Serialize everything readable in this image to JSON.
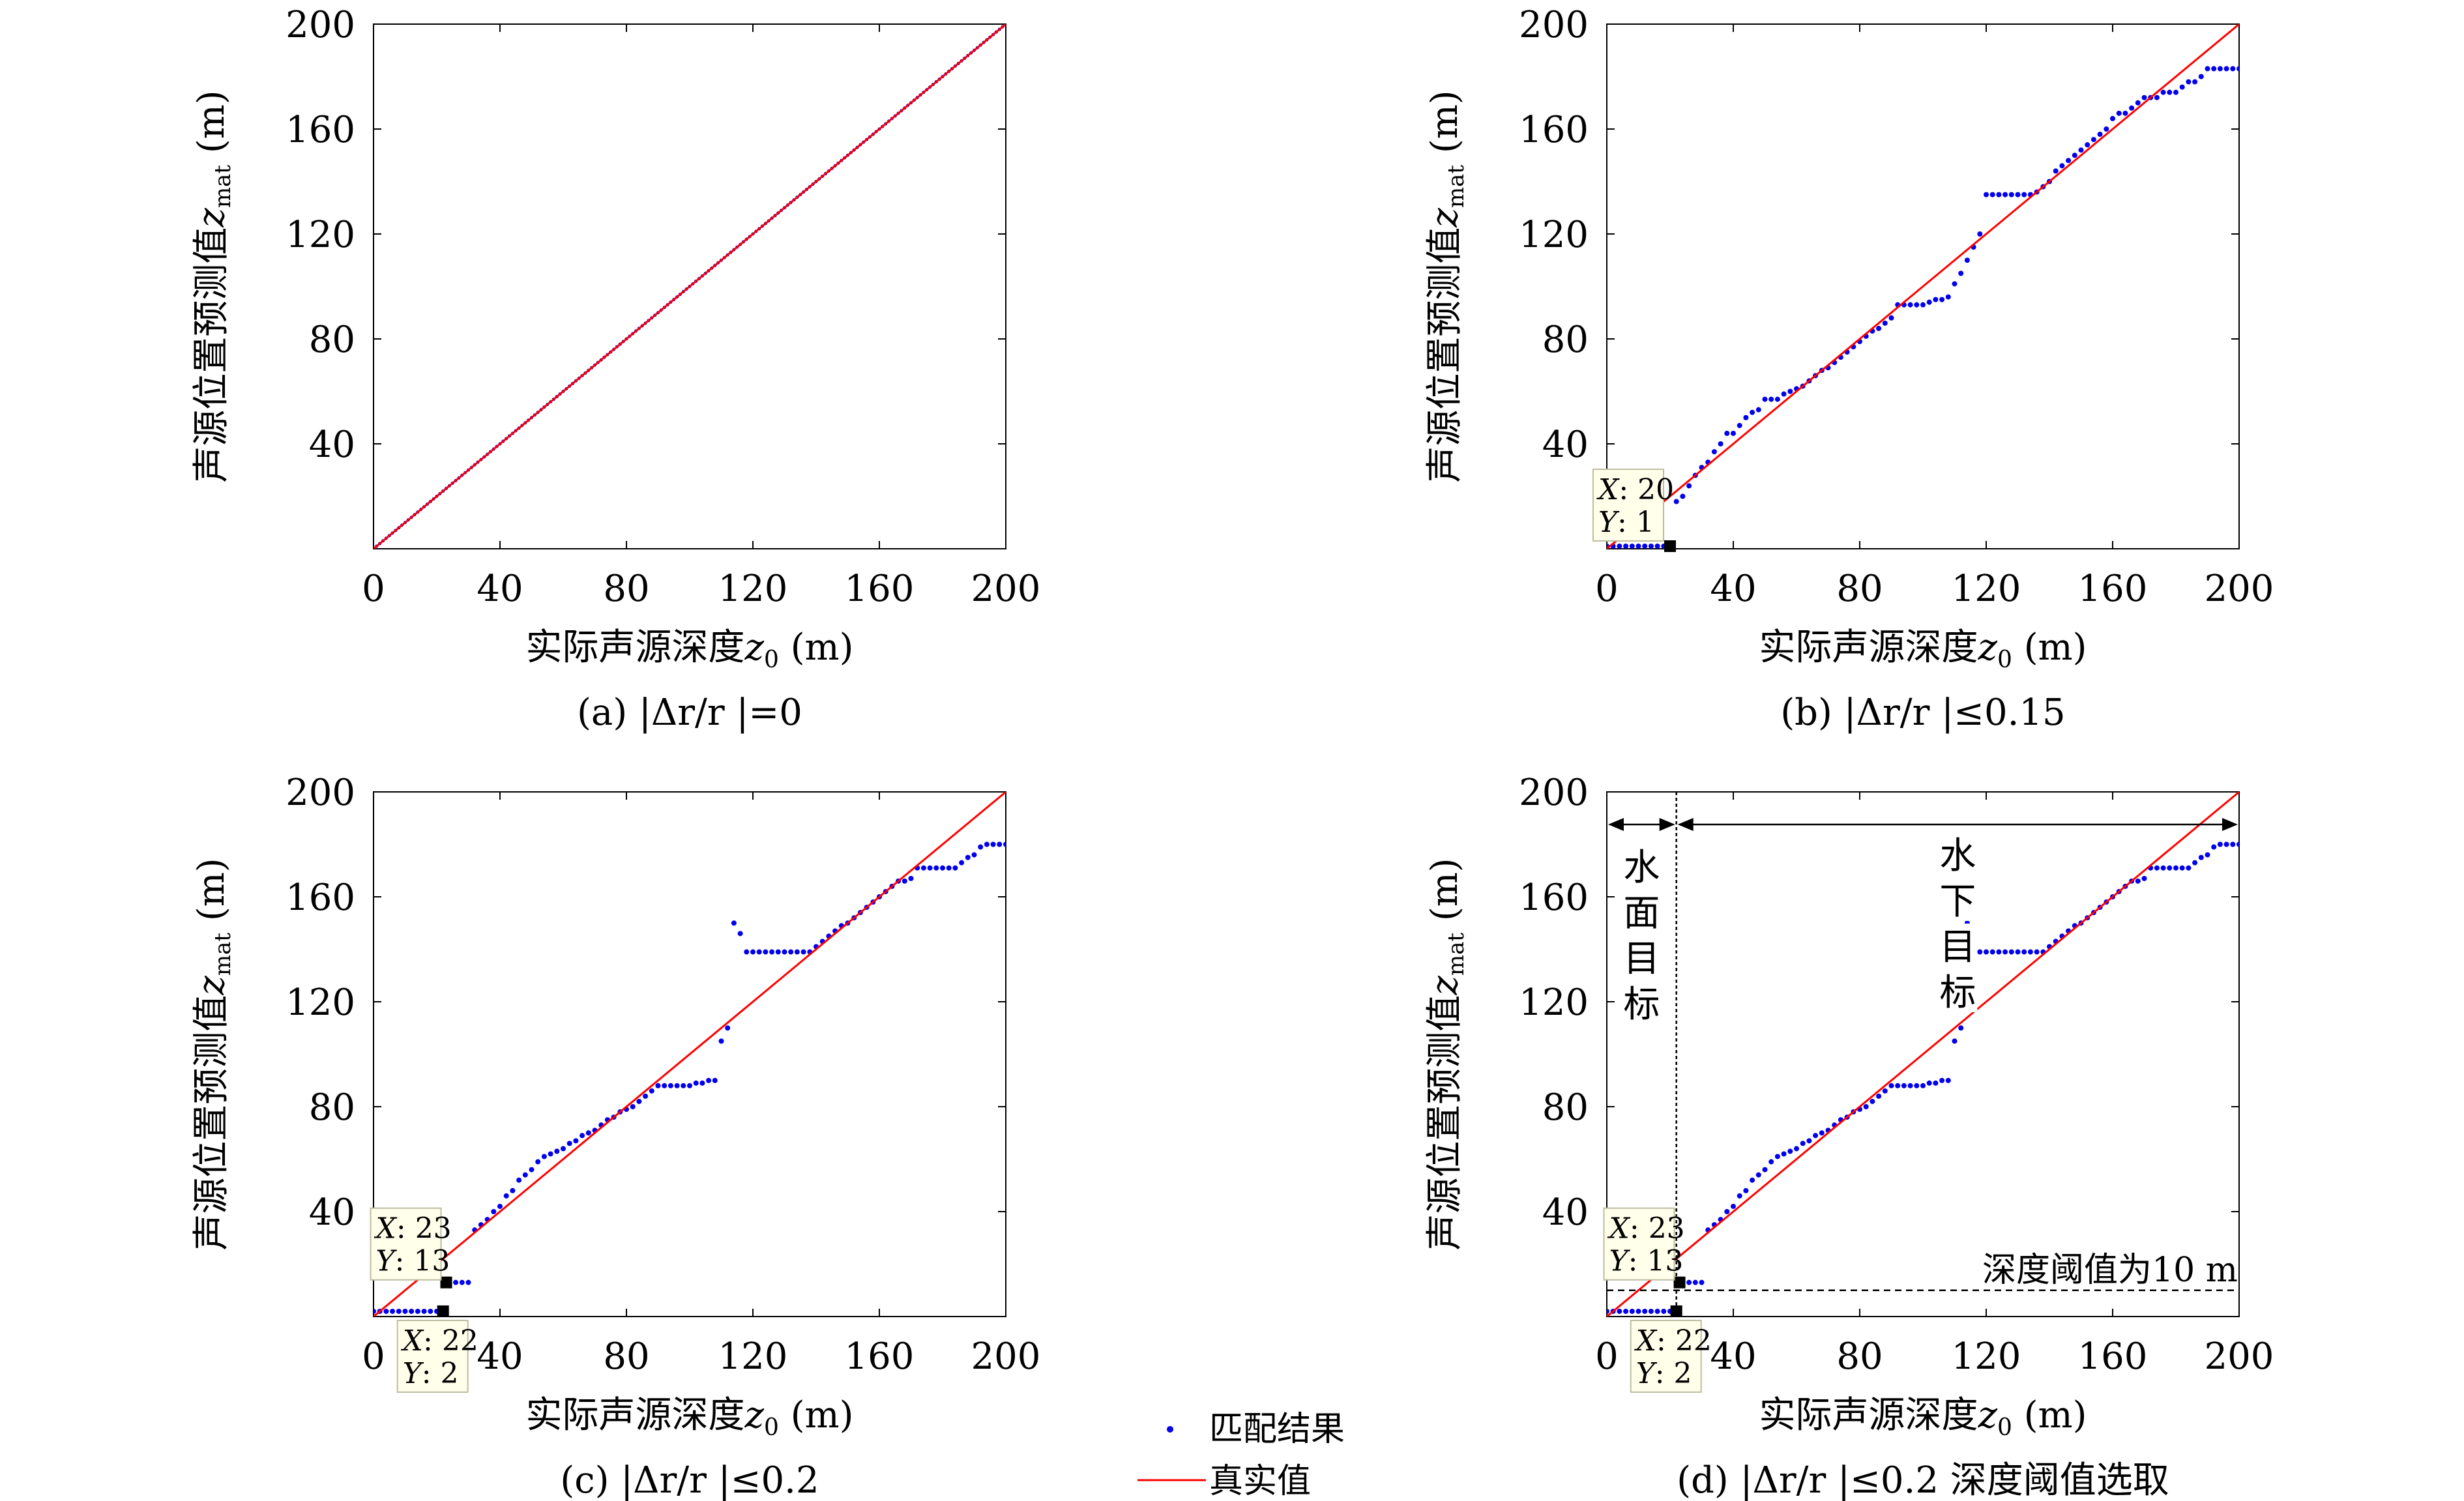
{
  "colors": {
    "match": "#0000ee",
    "truth": "#ff0000",
    "axis": "#000000",
    "tip_bg": "#ffffea"
  },
  "legend": {
    "match_label": "匹配结果",
    "truth_label": "真实值"
  },
  "axes": {
    "xlabel_prefix": "实际声源深度",
    "xlabel_var": "z",
    "xlabel_sub": "0",
    "xlabel_unit": "(m)",
    "ylabel_prefix": "声源位置预测值",
    "ylabel_var": "z",
    "ylabel_sub": "mat",
    "ylabel_unit": "(m)"
  },
  "panels": [
    {
      "caption": "(a) |Δr/r |=0",
      "xticks": [
        "0",
        "40",
        "80",
        "120",
        "160",
        "200"
      ],
      "yticks": [
        "40",
        "80",
        "120",
        "160",
        "200"
      ],
      "tips": []
    },
    {
      "caption": "(b) |Δr/r |≤0.15",
      "xticks": [
        "0",
        "40",
        "80",
        "120",
        "160",
        "200"
      ],
      "yticks": [
        "40",
        "80",
        "120",
        "160",
        "200"
      ],
      "tips": [
        {
          "x": "20",
          "y": "1"
        }
      ]
    },
    {
      "caption": "(c) |Δr/r |≤0.2",
      "xticks": [
        "0",
        "40",
        "80",
        "120",
        "160",
        "200"
      ],
      "yticks": [
        "40",
        "80",
        "120",
        "160",
        "200"
      ],
      "tips": [
        {
          "x": "23",
          "y": "13"
        },
        {
          "x": "22",
          "y": "2"
        }
      ]
    },
    {
      "caption": "(d) |Δr/r |≤0.2 深度阈值选取",
      "xticks": [
        "0",
        "40",
        "80",
        "120",
        "160",
        "200"
      ],
      "yticks": [
        "40",
        "80",
        "120",
        "160",
        "200"
      ],
      "tips": [
        {
          "x": "23",
          "y": "13"
        },
        {
          "x": "22",
          "y": "2"
        }
      ],
      "annotations": {
        "surface": [
          "水",
          "面",
          "目",
          "标"
        ],
        "underwater": [
          "水",
          "下",
          "目",
          "标"
        ],
        "threshold_label": "深度阈值为10 m"
      }
    }
  ],
  "chart_data": [
    {
      "type": "scatter",
      "title": "(a) |Δr/r |=0",
      "xlabel": "实际声源深度z0 (m)",
      "ylabel": "声源位置预测值zmat (m)",
      "xlim": [
        0,
        200
      ],
      "ylim": [
        0,
        200
      ],
      "grid": false,
      "series": [
        {
          "name": "匹配结果",
          "kind": "points",
          "rule": "identity",
          "x_range": [
            0,
            200
          ],
          "step": 1
        },
        {
          "name": "真实值",
          "kind": "line",
          "x": [
            0,
            200
          ],
          "y": [
            0,
            200
          ]
        }
      ]
    },
    {
      "type": "scatter",
      "title": "(b) |Δr/r |≤0.15",
      "xlabel": "实际声源深度z0 (m)",
      "ylabel": "声源位置预测值zmat (m)",
      "xlim": [
        0,
        200
      ],
      "ylim": [
        0,
        200
      ],
      "grid": false,
      "series": [
        {
          "name": "匹配结果",
          "kind": "points",
          "x": [
            0,
            2,
            4,
            6,
            8,
            10,
            12,
            14,
            16,
            18,
            20,
            22,
            24,
            26,
            28,
            30,
            32,
            34,
            36,
            38,
            40,
            42,
            44,
            46,
            48,
            50,
            52,
            54,
            56,
            58,
            60,
            62,
            64,
            66,
            68,
            70,
            72,
            74,
            76,
            78,
            80,
            82,
            84,
            86,
            88,
            90,
            92,
            94,
            96,
            98,
            100,
            102,
            104,
            106,
            108,
            110,
            112,
            114,
            116,
            118,
            120,
            122,
            124,
            126,
            128,
            130,
            132,
            134,
            136,
            138,
            140,
            142,
            144,
            146,
            148,
            150,
            152,
            154,
            156,
            158,
            160,
            162,
            164,
            166,
            168,
            170,
            172,
            174,
            176,
            178,
            180,
            182,
            184,
            186,
            188,
            190,
            192,
            194,
            196,
            198,
            200
          ],
          "y": [
            1,
            1,
            1,
            1,
            1,
            1,
            1,
            1,
            1,
            1,
            1,
            18,
            20,
            24,
            28,
            31,
            33,
            37,
            40,
            44,
            44,
            47,
            50,
            52,
            53,
            57,
            57,
            57,
            59,
            60,
            61,
            62,
            64,
            66,
            68,
            69,
            71,
            73,
            75,
            77,
            79,
            81,
            83,
            84,
            86,
            88,
            93,
            93,
            93,
            93,
            93,
            94,
            95,
            95,
            96,
            101,
            105,
            110,
            115,
            120,
            135,
            135,
            135,
            135,
            135,
            135,
            135,
            135,
            136,
            138,
            140,
            144,
            146,
            148,
            150,
            152,
            154,
            156,
            158,
            160,
            164,
            166,
            166,
            168,
            170,
            172,
            172,
            172,
            174,
            174,
            174,
            176,
            178,
            178,
            180,
            183,
            183,
            183,
            183,
            183,
            183
          ]
        },
        {
          "name": "真实值",
          "kind": "line",
          "x": [
            0,
            200
          ],
          "y": [
            0,
            200
          ]
        }
      ],
      "tooltips": [
        {
          "x": 20,
          "y": 1
        }
      ]
    },
    {
      "type": "scatter",
      "title": "(c) |Δr/r |≤0.2",
      "xlabel": "实际声源深度z0 (m)",
      "ylabel": "声源位置预测值zmat (m)",
      "xlim": [
        0,
        200
      ],
      "ylim": [
        0,
        200
      ],
      "grid": false,
      "series": [
        {
          "name": "匹配结果",
          "kind": "points",
          "x": [
            0,
            2,
            4,
            6,
            8,
            10,
            12,
            14,
            16,
            18,
            20,
            22,
            24,
            26,
            28,
            30,
            32,
            34,
            36,
            38,
            40,
            42,
            44,
            46,
            48,
            50,
            52,
            54,
            56,
            58,
            60,
            62,
            64,
            66,
            68,
            70,
            72,
            74,
            76,
            78,
            80,
            82,
            84,
            86,
            88,
            90,
            92,
            94,
            96,
            98,
            100,
            102,
            104,
            106,
            108,
            110,
            112,
            114,
            116,
            118,
            120,
            122,
            124,
            126,
            128,
            130,
            132,
            134,
            136,
            138,
            140,
            142,
            144,
            146,
            148,
            150,
            152,
            154,
            156,
            158,
            160,
            162,
            164,
            166,
            168,
            170,
            172,
            174,
            176,
            178,
            180,
            182,
            184,
            186,
            188,
            190,
            192,
            194,
            196,
            198,
            200
          ],
          "y": [
            2,
            2,
            2,
            2,
            2,
            2,
            2,
            2,
            2,
            2,
            2,
            2,
            13,
            13,
            13,
            13,
            33,
            35,
            37,
            40,
            42,
            46,
            48,
            52,
            54,
            56,
            59,
            61,
            62,
            63,
            64,
            66,
            67,
            69,
            70,
            71,
            73,
            75,
            76,
            78,
            79,
            80,
            82,
            84,
            86,
            88,
            88,
            88,
            88,
            88,
            88,
            89,
            89,
            90,
            90,
            105,
            110,
            150,
            146,
            139,
            139,
            139,
            139,
            139,
            139,
            139,
            139,
            139,
            139,
            139,
            141,
            143,
            145,
            147,
            149,
            150,
            152,
            154,
            156,
            158,
            160,
            162,
            164,
            166,
            166,
            167,
            171,
            171,
            171,
            171,
            171,
            171,
            171,
            173,
            175,
            176,
            179,
            180,
            180,
            180,
            180
          ]
        },
        {
          "name": "真实值",
          "kind": "line",
          "x": [
            0,
            200
          ],
          "y": [
            0,
            200
          ]
        }
      ],
      "tooltips": [
        {
          "x": 23,
          "y": 13
        },
        {
          "x": 22,
          "y": 2
        }
      ]
    },
    {
      "type": "scatter",
      "title": "(d) |Δr/r |≤0.2 深度阈值选取",
      "xlabel": "实际声源深度z0 (m)",
      "ylabel": "声源位置预测值zmat (m)",
      "xlim": [
        0,
        200
      ],
      "ylim": [
        0,
        200
      ],
      "grid": false,
      "series": [
        {
          "name": "匹配结果",
          "kind": "points",
          "x": [
            0,
            2,
            4,
            6,
            8,
            10,
            12,
            14,
            16,
            18,
            20,
            22,
            24,
            26,
            28,
            30,
            32,
            34,
            36,
            38,
            40,
            42,
            44,
            46,
            48,
            50,
            52,
            54,
            56,
            58,
            60,
            62,
            64,
            66,
            68,
            70,
            72,
            74,
            76,
            78,
            80,
            82,
            84,
            86,
            88,
            90,
            92,
            94,
            96,
            98,
            100,
            102,
            104,
            106,
            108,
            110,
            112,
            114,
            116,
            118,
            120,
            122,
            124,
            126,
            128,
            130,
            132,
            134,
            136,
            138,
            140,
            142,
            144,
            146,
            148,
            150,
            152,
            154,
            156,
            158,
            160,
            162,
            164,
            166,
            168,
            170,
            172,
            174,
            176,
            178,
            180,
            182,
            184,
            186,
            188,
            190,
            192,
            194,
            196,
            198,
            200
          ],
          "y": [
            2,
            2,
            2,
            2,
            2,
            2,
            2,
            2,
            2,
            2,
            2,
            2,
            13,
            13,
            13,
            13,
            33,
            35,
            37,
            40,
            42,
            46,
            48,
            52,
            54,
            56,
            59,
            61,
            62,
            63,
            64,
            66,
            67,
            69,
            70,
            71,
            73,
            75,
            76,
            78,
            79,
            80,
            82,
            84,
            86,
            88,
            88,
            88,
            88,
            88,
            88,
            89,
            89,
            90,
            90,
            105,
            110,
            150,
            146,
            139,
            139,
            139,
            139,
            139,
            139,
            139,
            139,
            139,
            139,
            139,
            141,
            143,
            145,
            147,
            149,
            150,
            152,
            154,
            156,
            158,
            160,
            162,
            164,
            166,
            166,
            167,
            171,
            171,
            171,
            171,
            171,
            171,
            171,
            173,
            175,
            176,
            179,
            180,
            180,
            180,
            180
          ]
        },
        {
          "name": "真实值",
          "kind": "line",
          "x": [
            0,
            200
          ],
          "y": [
            0,
            200
          ]
        }
      ],
      "tooltips": [
        {
          "x": 23,
          "y": 13
        },
        {
          "x": 22,
          "y": 2
        }
      ],
      "threshold_y": 10,
      "divider_x": 22
    }
  ]
}
